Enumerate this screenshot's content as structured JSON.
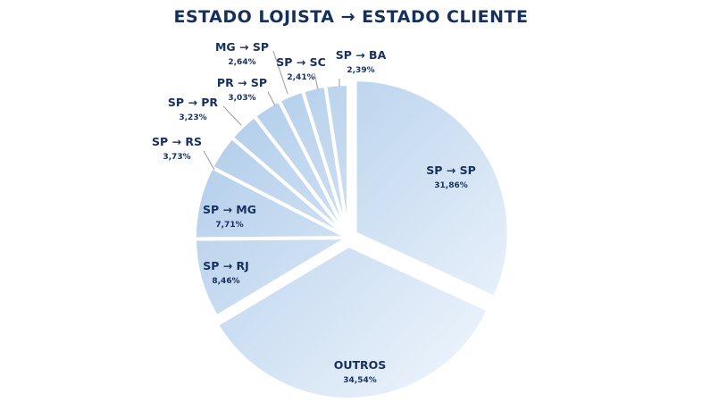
{
  "chart_data": {
    "type": "pie",
    "title": "ESTADO LOJISTA → ESTADO CLIENTE",
    "start": "12 o'clock, clockwise",
    "exploded": [
      "SP → SP",
      "OUTROS"
    ],
    "slices": [
      {
        "name": "SP → SP",
        "value": 31.86,
        "display": "31,86%"
      },
      {
        "name": "OUTROS",
        "value": 34.54,
        "display": "34,54%"
      },
      {
        "name": "SP → RJ",
        "value": 8.46,
        "display": "8,46%"
      },
      {
        "name": "SP → MG",
        "value": 7.71,
        "display": "7,71%"
      },
      {
        "name": "SP → RS",
        "value": 3.73,
        "display": "3,73%"
      },
      {
        "name": "SP → PR",
        "value": 3.23,
        "display": "3,23%"
      },
      {
        "name": "PR → SP",
        "value": 3.03,
        "display": "3,03%"
      },
      {
        "name": "MG → SP",
        "value": 2.64,
        "display": "2,64%"
      },
      {
        "name": "SP → SC",
        "value": 2.41,
        "display": "2,41%"
      },
      {
        "name": "SP → BA",
        "value": 2.39,
        "display": "2,39%"
      }
    ],
    "colors": {
      "light": "#f2f7fd",
      "dark": "#a9c8e8",
      "separator": "#ffffff",
      "text": "#16305e"
    }
  }
}
